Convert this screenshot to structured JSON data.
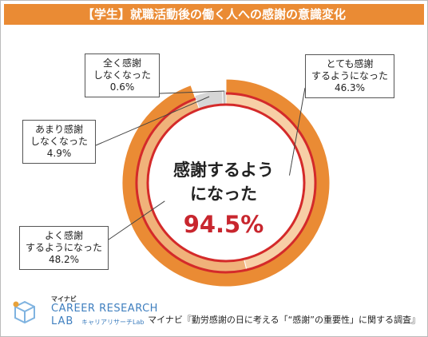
{
  "title": "【学生】就職活動後の働く人への感謝の意識変化",
  "center": {
    "line1": "感謝するよう",
    "line2": "になった",
    "value": "94.5%"
  },
  "source": "マイナビ『勤労感謝の日に考える「“感謝”の重要性」に関する調査』",
  "logo": {
    "small": "マイナビ",
    "main": "CAREER RESEARCH",
    "lab": "LAB",
    "sub": "キャリアリサーチLab"
  },
  "colors": {
    "title_bg": "#ea8b34",
    "outer_ring": "#ea8b34",
    "red_rings": "#d42a2a",
    "totemo": "#f7cfa6",
    "yoku": "#f0b27a",
    "amari": "#d6d6d6",
    "mattaku": "#c4c4c4",
    "center_value": "#c8262e"
  },
  "chart_data": {
    "type": "pie",
    "style": "donut",
    "order": "clockwise from top",
    "slices": [
      {
        "label_line1": "とても感謝",
        "label_line2": "するようになった",
        "percent": "46.3%",
        "value": 46.3
      },
      {
        "label_line1": "よく感謝",
        "label_line2": "するようになった",
        "percent": "48.2%",
        "value": 48.2
      },
      {
        "label_line1": "あまり感謝",
        "label_line2": "しなくなった",
        "percent": "4.9%",
        "value": 4.9
      },
      {
        "label_line1": "全く感謝",
        "label_line2": "しなくなった",
        "percent": "0.6%",
        "value": 0.6
      }
    ]
  }
}
